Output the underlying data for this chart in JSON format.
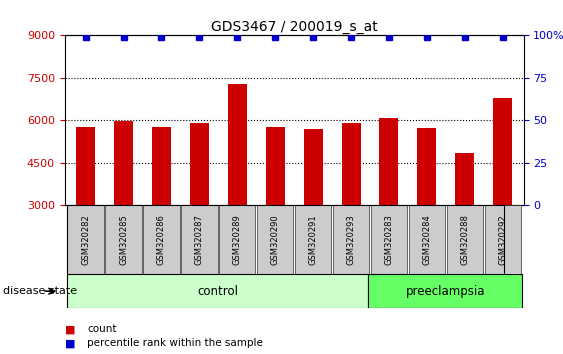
{
  "title": "GDS3467 / 200019_s_at",
  "categories": [
    "GSM320282",
    "GSM320285",
    "GSM320286",
    "GSM320287",
    "GSM320289",
    "GSM320290",
    "GSM320291",
    "GSM320293",
    "GSM320283",
    "GSM320284",
    "GSM320288",
    "GSM320292"
  ],
  "counts": [
    5750,
    5980,
    5750,
    5920,
    7280,
    5750,
    5680,
    5920,
    6100,
    5720,
    4850,
    6800
  ],
  "percentiles": [
    99,
    99,
    99,
    99,
    99,
    99,
    99,
    99,
    99,
    99,
    99,
    99
  ],
  "bar_color": "#cc0000",
  "percentile_color": "#0000cc",
  "ylim_left": [
    3000,
    9000
  ],
  "ylim_right": [
    0,
    100
  ],
  "yticks_left": [
    3000,
    4500,
    6000,
    7500,
    9000
  ],
  "yticks_right": [
    0,
    25,
    50,
    75,
    100
  ],
  "gridlines": [
    4500,
    6000,
    7500
  ],
  "control_samples": 8,
  "preeclampsia_samples": 4,
  "control_label": "control",
  "preeclampsia_label": "preeclampsia",
  "disease_state_label": "disease state",
  "legend_count_label": "count",
  "legend_percentile_label": "percentile rank within the sample",
  "control_bg": "#ccffcc",
  "preeclampsia_bg": "#66ff66",
  "sample_label_bg": "#cccccc",
  "title_fontsize": 10,
  "tick_fontsize": 8,
  "label_fontsize": 8.5
}
